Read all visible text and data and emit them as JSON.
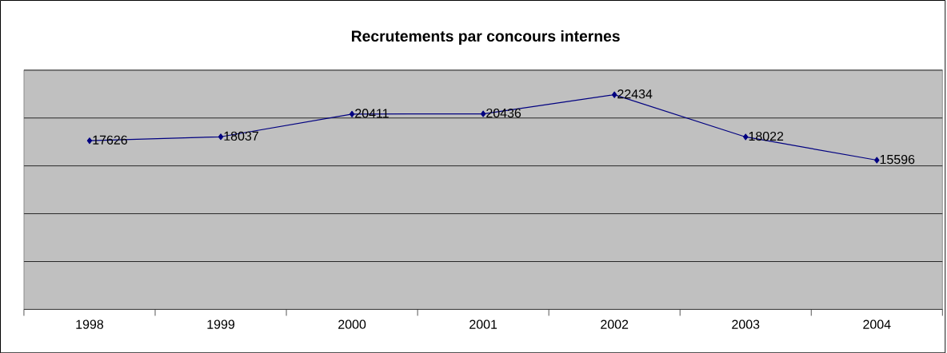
{
  "chart_data": {
    "type": "line",
    "title": "Recrutements par concours internes",
    "categories": [
      "1998",
      "1999",
      "2000",
      "2001",
      "2002",
      "2003",
      "2004"
    ],
    "values": [
      17626,
      18037,
      20411,
      20436,
      22434,
      18022,
      15596
    ],
    "color": "#000080",
    "marker": "diamond",
    "data_labels": true,
    "ylim": [
      0,
      25000
    ],
    "yticks": [
      {
        "value": 0,
        "label": null
      },
      {
        "value": 5000,
        "label": null
      },
      {
        "value": 10000,
        "label": null
      },
      {
        "value": 15000,
        "label": null
      },
      {
        "value": 20000,
        "label": null
      },
      {
        "value": 25000,
        "label": null
      }
    ],
    "grid": "y",
    "tick_labels": "x"
  }
}
